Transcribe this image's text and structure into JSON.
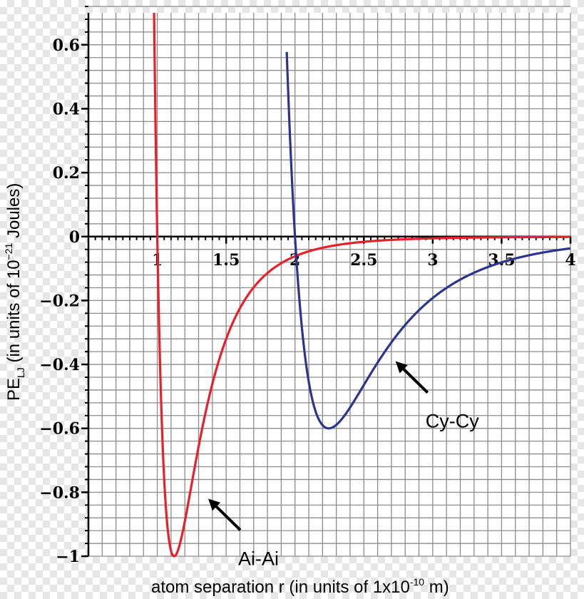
{
  "chart_data": {
    "type": "line",
    "xlabel_main": "atom separation r (in units of 1x10",
    "xlabel_sup": "-10",
    "xlabel_tail": " m)",
    "ylabel_pe": "PE",
    "ylabel_sub": "LJ",
    "ylabel_mid": " (in units of 10",
    "ylabel_sup": "−21",
    "ylabel_tail": " Joules)",
    "xlim": [
      0.5,
      4
    ],
    "ylim": [
      -1,
      0.7
    ],
    "x_ticks": [
      {
        "value": 1,
        "label": "1"
      },
      {
        "value": 1.5,
        "label": "1.5"
      },
      {
        "value": 2,
        "label": "2"
      },
      {
        "value": 2.5,
        "label": "2.5"
      },
      {
        "value": 3,
        "label": "3"
      },
      {
        "value": 3.5,
        "label": "3.5"
      },
      {
        "value": 4,
        "label": "4"
      }
    ],
    "y_ticks": [
      {
        "value": 0.6,
        "label": "0.6"
      },
      {
        "value": 0.4,
        "label": "0.4"
      },
      {
        "value": 0.2,
        "label": "0.2"
      },
      {
        "value": 0,
        "label": "0"
      },
      {
        "value": -0.2,
        "label": "−0.2"
      },
      {
        "value": -0.4,
        "label": "−0.4"
      },
      {
        "value": -0.6,
        "label": "−0.6"
      },
      {
        "value": -0.8,
        "label": "−0.8"
      },
      {
        "value": -1,
        "label": "−1"
      }
    ],
    "grid_x_step": 0.1,
    "grid_y_step": 0.04,
    "series": [
      {
        "name": "Ai-Ai",
        "model": "lennard-jones",
        "sigma": 1.0,
        "epsilon": 1.0,
        "color": "#e8202a"
      },
      {
        "name": "Cy-Cy",
        "model": "lennard-jones",
        "sigma": 2.0,
        "epsilon": 0.6,
        "color": "#2b3590"
      }
    ],
    "annotations": [
      {
        "text": "Ai-Ai",
        "target_x": 1.37,
        "target_y": -0.82,
        "series": 0
      },
      {
        "text": "Cy-Cy",
        "target_x": 2.73,
        "target_y": -0.39,
        "series": 1
      }
    ],
    "grid_color": "#8c8c8c"
  }
}
